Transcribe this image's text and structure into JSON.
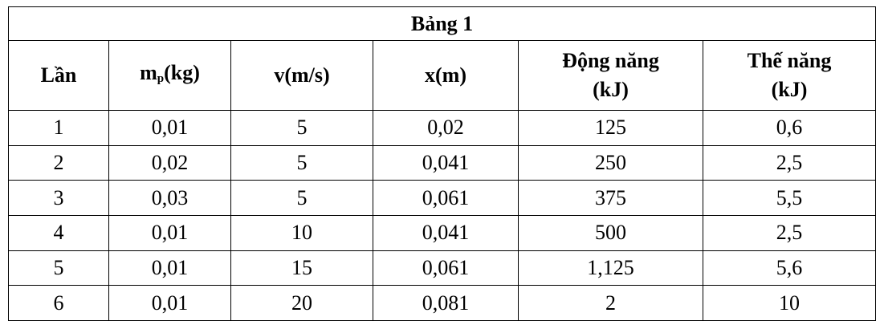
{
  "table": {
    "title": "Bảng 1",
    "headers": [
      [
        "Lần"
      ],
      {
        "base": "m",
        "sub": "p",
        "rest": "(kg)"
      },
      [
        "v(m/s)"
      ],
      [
        "x(m)"
      ],
      [
        "Động năng",
        "(kJ)"
      ],
      [
        "Thế năng",
        "(kJ)"
      ]
    ],
    "rows": [
      [
        "1",
        "0,01",
        "5",
        "0,02",
        "125",
        "0,6"
      ],
      [
        "2",
        "0,02",
        "5",
        "0,041",
        "250",
        "2,5"
      ],
      [
        "3",
        "0,03",
        "5",
        "0,061",
        "375",
        "5,5"
      ],
      [
        "4",
        "0,01",
        "10",
        "0,041",
        "500",
        "2,5"
      ],
      [
        "5",
        "0,01",
        "15",
        "0,061",
        "1,125",
        "5,6"
      ],
      [
        "6",
        "0,01",
        "20",
        "0,081",
        "2",
        "10"
      ]
    ]
  }
}
